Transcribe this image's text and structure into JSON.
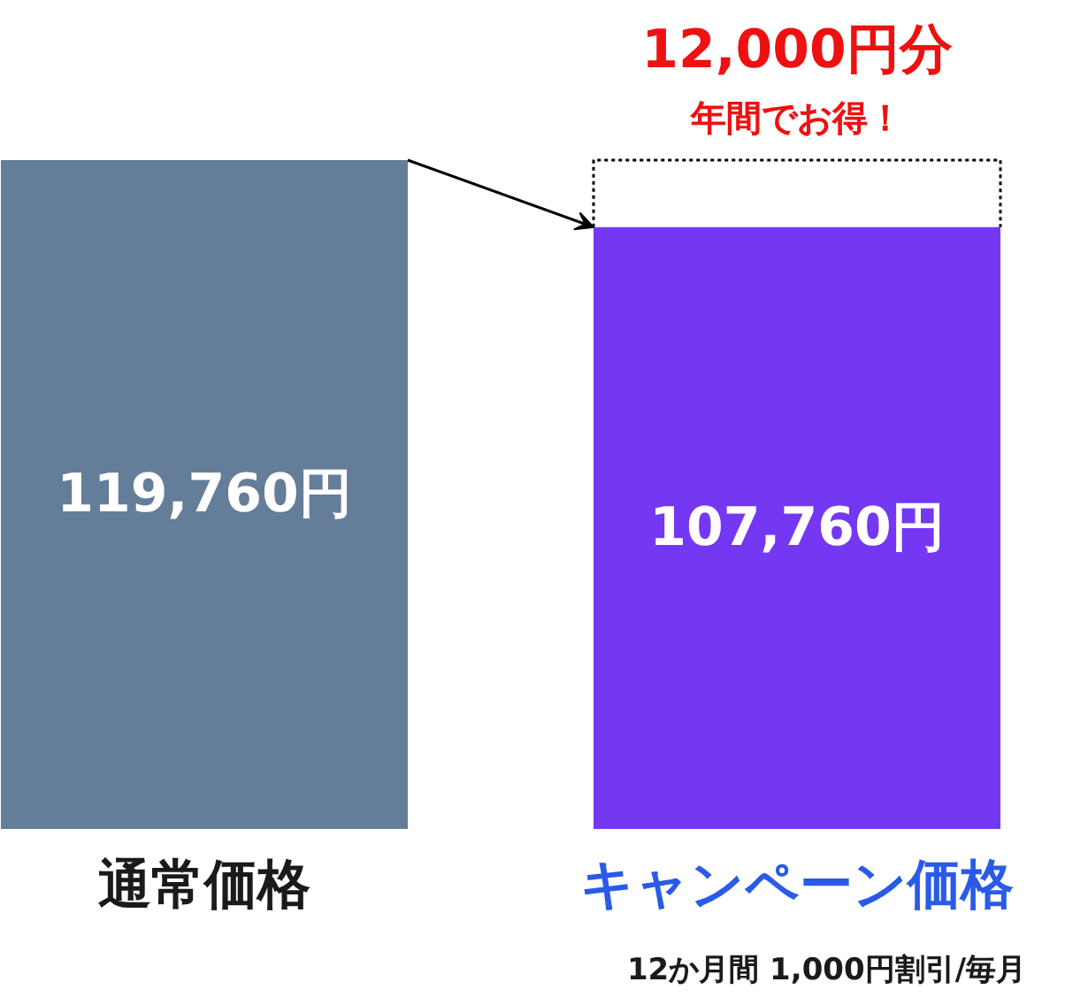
{
  "chart_data": {
    "type": "bar",
    "categories": [
      "通常価格",
      "キャンペーン価格"
    ],
    "values": [
      119760,
      107760
    ],
    "colors": [
      "#647d99",
      "#7438f3"
    ],
    "value_labels": [
      "119,760円",
      "107,760円"
    ],
    "annotations": [
      "12,000円分",
      "年間でお得！",
      "12か月間 1,000円割引/毎月"
    ]
  }
}
